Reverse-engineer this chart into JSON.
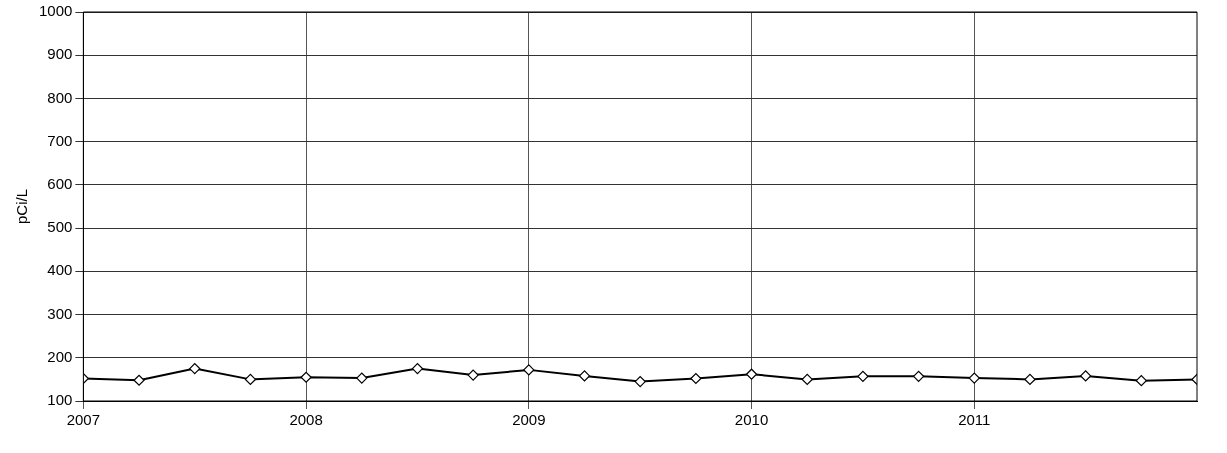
{
  "chart_data": {
    "type": "line",
    "ylabel": "pCi/L",
    "x": [
      2007,
      2007.25,
      2007.5,
      2007.75,
      2008,
      2008.25,
      2008.5,
      2008.75,
      2009,
      2009.25,
      2009.5,
      2009.75,
      2010,
      2010.25,
      2010.5,
      2010.75,
      2011,
      2011.25,
      2011.5,
      2011.75,
      2012
    ],
    "series": [
      {
        "color": "#000000",
        "values": [
          152,
          148,
          175,
          150,
          155,
          153,
          175,
          160,
          172,
          158,
          145,
          152,
          162,
          150,
          157,
          157,
          153,
          150,
          158,
          147,
          150
        ]
      }
    ],
    "xlim": [
      2007,
      2012
    ],
    "xticks": [
      2007,
      2008,
      2009,
      2010,
      2011
    ],
    "ylim": [
      100,
      1000
    ],
    "yticks": [
      100,
      200,
      300,
      400,
      500,
      600,
      700,
      800,
      900,
      1000
    ],
    "grid": true,
    "legend": false,
    "marker": "diamond",
    "line_style": "solid"
  }
}
